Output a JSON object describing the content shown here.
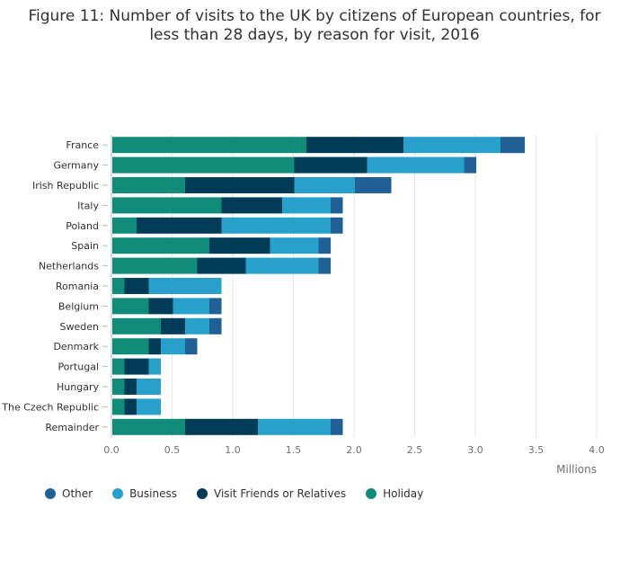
{
  "title": "Figure 11: Number of visits to the UK by citizens of European countries, for less than 28 days, by reason for visit, 2016",
  "chart_data": {
    "type": "bar",
    "orientation": "horizontal",
    "stacked": true,
    "title": "Figure 11: Number of visits to the UK by citizens of European countries, for less than 28 days, by reason for visit, 2016",
    "xlabel": "Millions",
    "ylabel": "",
    "xlim": [
      0,
      4.0
    ],
    "xticks": [
      "0.0",
      "0.5",
      "1.0",
      "1.5",
      "2.0",
      "2.5",
      "3.0",
      "3.5",
      "4.0"
    ],
    "grid": true,
    "legend_position": "bottom-left",
    "categories": [
      "France",
      "Germany",
      "Irish Republic",
      "Italy",
      "Poland",
      "Spain",
      "Netherlands",
      "Romania",
      "Belgium",
      "Sweden",
      "Denmark",
      "Portugal",
      "Hungary",
      "The Czech Republic",
      "Remainder"
    ],
    "series": [
      {
        "name": "Holiday",
        "color": "#118c7b",
        "values": [
          1.6,
          1.5,
          0.6,
          0.9,
          0.2,
          0.8,
          0.7,
          0.1,
          0.3,
          0.4,
          0.3,
          0.1,
          0.1,
          0.1,
          0.6
        ]
      },
      {
        "name": "Visit Friends or Relatives",
        "color": "#003c57",
        "values": [
          0.8,
          0.6,
          0.9,
          0.5,
          0.7,
          0.5,
          0.4,
          0.2,
          0.2,
          0.2,
          0.1,
          0.2,
          0.1,
          0.1,
          0.6
        ]
      },
      {
        "name": "Business",
        "color": "#27a0cc",
        "values": [
          0.8,
          0.8,
          0.5,
          0.4,
          0.9,
          0.4,
          0.6,
          0.6,
          0.3,
          0.2,
          0.2,
          0.1,
          0.2,
          0.2,
          0.6
        ]
      },
      {
        "name": "Other",
        "color": "#206095",
        "values": [
          0.2,
          0.1,
          0.3,
          0.1,
          0.1,
          0.1,
          0.1,
          0.0,
          0.1,
          0.1,
          0.1,
          0.0,
          0.0,
          0.0,
          0.1
        ]
      }
    ]
  },
  "legend": [
    {
      "label": "Other",
      "color": "#206095"
    },
    {
      "label": "Business",
      "color": "#27a0cc"
    },
    {
      "label": "Visit Friends or Relatives",
      "color": "#003c57"
    },
    {
      "label": "Holiday",
      "color": "#118c7b"
    }
  ]
}
